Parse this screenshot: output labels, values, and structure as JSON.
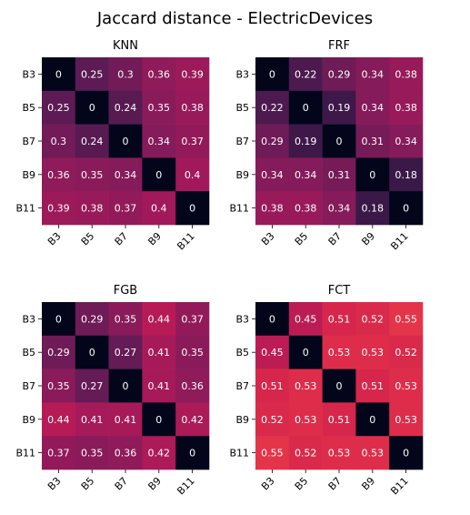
{
  "title": "Jaccard distance - ElectricDevices",
  "chart_data": [
    {
      "type": "heatmap",
      "title": "KNN",
      "rows": [
        "B3",
        "B5",
        "B7",
        "B9",
        "B11"
      ],
      "cols": [
        "B3",
        "B5",
        "B7",
        "B9",
        "B11"
      ],
      "values": [
        [
          0,
          0.25,
          0.3,
          0.36,
          0.39
        ],
        [
          0.25,
          0,
          0.24,
          0.35,
          0.38
        ],
        [
          0.3,
          0.24,
          0,
          0.34,
          0.37
        ],
        [
          0.36,
          0.35,
          0.34,
          0,
          0.4
        ],
        [
          0.39,
          0.38,
          0.37,
          0.4,
          0
        ]
      ]
    },
    {
      "type": "heatmap",
      "title": "FRF",
      "rows": [
        "B3",
        "B5",
        "B7",
        "B9",
        "B11"
      ],
      "cols": [
        "B3",
        "B5",
        "B7",
        "B9",
        "B11"
      ],
      "values": [
        [
          0,
          0.22,
          0.29,
          0.34,
          0.38
        ],
        [
          0.22,
          0,
          0.19,
          0.34,
          0.38
        ],
        [
          0.29,
          0.19,
          0,
          0.31,
          0.34
        ],
        [
          0.34,
          0.34,
          0.31,
          0,
          0.18
        ],
        [
          0.38,
          0.38,
          0.34,
          0.18,
          0
        ]
      ]
    },
    {
      "type": "heatmap",
      "title": "FGB",
      "rows": [
        "B3",
        "B5",
        "B7",
        "B9",
        "B11"
      ],
      "cols": [
        "B3",
        "B5",
        "B7",
        "B9",
        "B11"
      ],
      "values": [
        [
          0,
          0.29,
          0.35,
          0.44,
          0.37
        ],
        [
          0.29,
          0,
          0.27,
          0.41,
          0.35
        ],
        [
          0.35,
          0.27,
          0,
          0.41,
          0.36
        ],
        [
          0.44,
          0.41,
          0.41,
          0,
          0.42
        ],
        [
          0.37,
          0.35,
          0.36,
          0.42,
          0
        ]
      ]
    },
    {
      "type": "heatmap",
      "title": "FCT",
      "rows": [
        "B3",
        "B5",
        "B7",
        "B9",
        "B11"
      ],
      "cols": [
        "B3",
        "B5",
        "B7",
        "B9",
        "B11"
      ],
      "values": [
        [
          0,
          0.45,
          0.51,
          0.52,
          0.55
        ],
        [
          0.45,
          0,
          0.53,
          0.53,
          0.52
        ],
        [
          0.51,
          0.53,
          0,
          0.51,
          0.53
        ],
        [
          0.52,
          0.53,
          0.51,
          0,
          0.53
        ],
        [
          0.55,
          0.52,
          0.53,
          0.53,
          0
        ]
      ]
    }
  ],
  "colors": {
    "zero": "#03051a",
    "low": "#3a1848",
    "mid": "#a1195a",
    "high": "#e3304c"
  }
}
